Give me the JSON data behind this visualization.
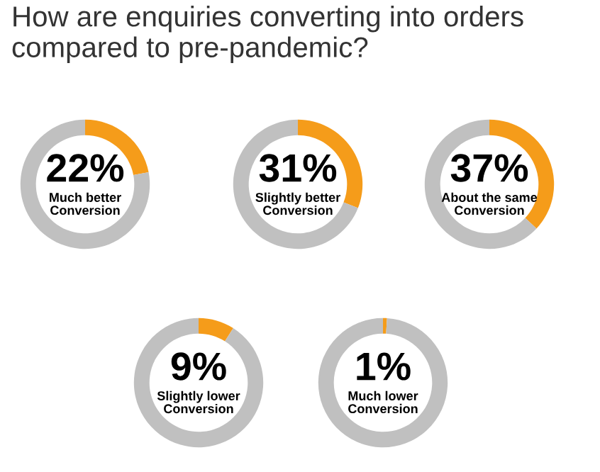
{
  "chart_data": [
    {
      "type": "donut",
      "title": "How are enquiries converting into orders compared to pre-pandemic?",
      "categories": [
        "Much better Conversion",
        null
      ],
      "values": [
        22,
        78
      ],
      "colors": [
        "#f59c1a",
        "#c0c0c0"
      ],
      "value_labels": [
        "22%",
        null
      ]
    },
    {
      "type": "donut",
      "categories": [
        "Slightly better Conversion",
        null
      ],
      "values": [
        31,
        69
      ],
      "colors": [
        "#f59c1a",
        "#c0c0c0"
      ],
      "value_labels": [
        "31%",
        null
      ]
    },
    {
      "type": "donut",
      "categories": [
        "About the same Conversion",
        null
      ],
      "values": [
        37,
        63
      ],
      "colors": [
        "#f59c1a",
        "#c0c0c0"
      ],
      "value_labels": [
        "37%",
        null
      ]
    },
    {
      "type": "donut",
      "categories": [
        "Slightly lower Conversion",
        null
      ],
      "values": [
        9,
        91
      ],
      "colors": [
        "#f59c1a",
        "#c0c0c0"
      ],
      "value_labels": [
        "9%",
        null
      ]
    },
    {
      "type": "donut",
      "categories": [
        "Much lower Conversion",
        null
      ],
      "values": [
        1,
        99
      ],
      "colors": [
        "#f59c1a",
        "#c0c0c0"
      ],
      "value_labels": [
        "1%",
        null
      ]
    }
  ]
}
